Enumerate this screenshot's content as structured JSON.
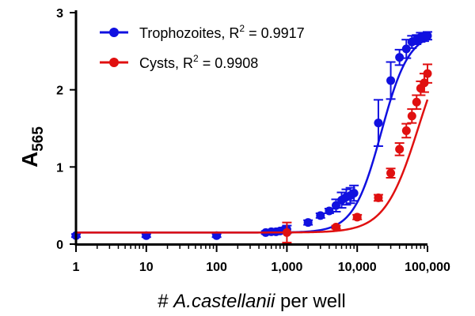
{
  "chart_data": {
    "type": "scatter",
    "title": "",
    "xlabel_parts": {
      "prefix": "# ",
      "species": "A.castellanii",
      "suffix": " per well"
    },
    "ylabel": "A",
    "ylabel_subscript": "565",
    "xscale": "log",
    "xlim": [
      1,
      100000
    ],
    "ylim": [
      0,
      3
    ],
    "xticks": [
      {
        "value": 1,
        "label": "1"
      },
      {
        "value": 10,
        "label": "10"
      },
      {
        "value": 100,
        "label": "100"
      },
      {
        "value": 1000,
        "label": "1,000"
      },
      {
        "value": 10000,
        "label": "10,000"
      },
      {
        "value": 100000,
        "label": "100,000"
      }
    ],
    "yticks": [
      {
        "value": 0,
        "label": "0"
      },
      {
        "value": 1,
        "label": "1"
      },
      {
        "value": 2,
        "label": "2"
      },
      {
        "value": 3,
        "label": "3"
      }
    ],
    "grid": false,
    "legend_position": "top-left",
    "series": [
      {
        "name": "Trophozoites",
        "legend_prefix": "Trophozoites, R",
        "legend_sup": "2",
        "legend_suffix": " = 0.9917",
        "color": "#1010e0",
        "fit": {
          "bottom": 0.15,
          "top": 2.75,
          "ec50": 22000,
          "hill": 2.2
        },
        "points": [
          {
            "x": 1,
            "y": 0.11,
            "err": 0.02
          },
          {
            "x": 10,
            "y": 0.11,
            "err": 0.02
          },
          {
            "x": 100,
            "y": 0.11,
            "err": 0.02
          },
          {
            "x": 500,
            "y": 0.15,
            "err": 0.02
          },
          {
            "x": 600,
            "y": 0.16,
            "err": 0.02
          },
          {
            "x": 700,
            "y": 0.16,
            "err": 0.02
          },
          {
            "x": 800,
            "y": 0.17,
            "err": 0.02
          },
          {
            "x": 900,
            "y": 0.18,
            "err": 0.03
          },
          {
            "x": 1000,
            "y": 0.19,
            "err": 0.05
          },
          {
            "x": 2000,
            "y": 0.28,
            "err": 0.03
          },
          {
            "x": 3000,
            "y": 0.37,
            "err": 0.03
          },
          {
            "x": 4000,
            "y": 0.43,
            "err": 0.03
          },
          {
            "x": 5000,
            "y": 0.5,
            "err": 0.08
          },
          {
            "x": 6000,
            "y": 0.57,
            "err": 0.1
          },
          {
            "x": 7000,
            "y": 0.61,
            "err": 0.1
          },
          {
            "x": 8000,
            "y": 0.63,
            "err": 0.1
          },
          {
            "x": 9000,
            "y": 0.66,
            "err": 0.1
          },
          {
            "x": 20000,
            "y": 1.57,
            "err": 0.3
          },
          {
            "x": 30000,
            "y": 2.12,
            "err": 0.24
          },
          {
            "x": 40000,
            "y": 2.42,
            "err": 0.1
          },
          {
            "x": 50000,
            "y": 2.53,
            "err": 0.12
          },
          {
            "x": 60000,
            "y": 2.62,
            "err": 0.08
          },
          {
            "x": 70000,
            "y": 2.65,
            "err": 0.06
          },
          {
            "x": 80000,
            "y": 2.68,
            "err": 0.06
          },
          {
            "x": 90000,
            "y": 2.68,
            "err": 0.05
          },
          {
            "x": 100000,
            "y": 2.7,
            "err": 0.05
          }
        ]
      },
      {
        "name": "Cysts",
        "legend_prefix": "Cysts, R",
        "legend_sup": "2",
        "legend_suffix": " = 0.9908",
        "color": "#e01010",
        "fit": {
          "bottom": 0.15,
          "top": 2.9,
          "ec50": 75000,
          "hill": 1.8
        },
        "points": [
          {
            "x": 1000,
            "y": 0.15,
            "err": 0.13
          },
          {
            "x": 5000,
            "y": 0.22,
            "err": 0.02
          },
          {
            "x": 10000,
            "y": 0.35,
            "err": 0.03
          },
          {
            "x": 20000,
            "y": 0.6,
            "err": 0.04
          },
          {
            "x": 30000,
            "y": 0.92,
            "err": 0.06
          },
          {
            "x": 40000,
            "y": 1.23,
            "err": 0.08
          },
          {
            "x": 50000,
            "y": 1.47,
            "err": 0.09
          },
          {
            "x": 60000,
            "y": 1.66,
            "err": 0.09
          },
          {
            "x": 70000,
            "y": 1.84,
            "err": 0.09
          },
          {
            "x": 80000,
            "y": 2.02,
            "err": 0.09
          },
          {
            "x": 90000,
            "y": 2.09,
            "err": 0.12
          },
          {
            "x": 100000,
            "y": 2.21,
            "err": 0.12
          }
        ]
      }
    ]
  }
}
